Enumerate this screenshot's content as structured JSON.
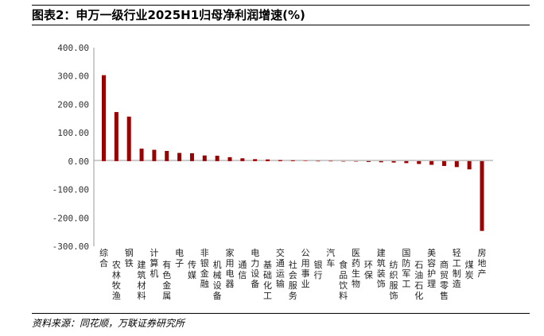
{
  "title": "图表2：申万一级行业2025H1归母净利润增速(%)",
  "source": "资料来源：同花顺，万联证券研究所",
  "colors": {
    "positive": "#990000",
    "negative": "#990000",
    "small": "#e05050"
  },
  "chart_data": {
    "type": "bar",
    "title": "图表2：申万一级行业2025H1归母净利润增速(%)",
    "xlabel": "",
    "ylabel": "",
    "ylim": [
      -300,
      400
    ],
    "yticks": [
      "400.00",
      "300.00",
      "200.00",
      "100.00",
      "0.00",
      "-100.00",
      "-200.00",
      "-300.00"
    ],
    "grid": false,
    "categories": [
      "综合",
      "农林牧渔",
      "钢铁",
      "建筑材料",
      "计算机",
      "有色金属",
      "电子",
      "传媒",
      "非银金融",
      "机械设备",
      "家用电器",
      "通信",
      "电力设备",
      "基础化工",
      "交通运输",
      "社会服务",
      "公用事业",
      "银行",
      "汽车",
      "食品饮料",
      "医药生物",
      "环保",
      "建筑装饰",
      "纺织服饰",
      "国防军工",
      "石油石化",
      "美容护理",
      "商贸零售",
      "轻工制造",
      "煤炭",
      "房地产"
    ],
    "values": [
      303,
      173,
      157,
      44,
      40,
      36,
      29,
      28,
      20,
      19,
      14,
      10,
      7,
      6,
      4,
      3,
      2,
      1,
      1,
      -1,
      -2,
      -3,
      -4,
      -5,
      -7,
      -10,
      -13,
      -17,
      -21,
      -29,
      -246
    ]
  }
}
